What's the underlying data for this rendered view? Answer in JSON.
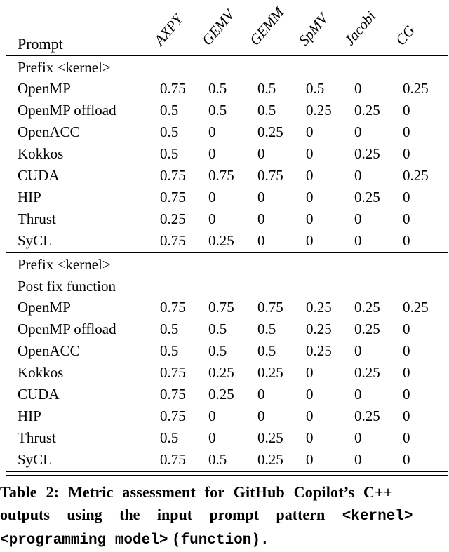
{
  "table": {
    "prompt_header": "Prompt",
    "columns": [
      "AXPY",
      "GEMV",
      "GEMM",
      "SpMV",
      "Jacobi",
      "CG"
    ],
    "sections": [
      {
        "header_lines": [
          "Prefix <kernel>"
        ],
        "rows": [
          {
            "label": "OpenMP",
            "values": [
              "0.75",
              "0.5",
              "0.5",
              "0.5",
              "0",
              "0.25"
            ]
          },
          {
            "label": "OpenMP offload",
            "values": [
              "0.5",
              "0.5",
              "0.5",
              "0.25",
              "0.25",
              "0"
            ]
          },
          {
            "label": "OpenACC",
            "values": [
              "0.5",
              "0",
              "0.25",
              "0",
              "0",
              "0"
            ]
          },
          {
            "label": "Kokkos",
            "values": [
              "0.5",
              "0",
              "0",
              "0",
              "0.25",
              "0"
            ]
          },
          {
            "label": "CUDA",
            "values": [
              "0.75",
              "0.75",
              "0.75",
              "0",
              "0",
              "0.25"
            ]
          },
          {
            "label": "HIP",
            "values": [
              "0.75",
              "0",
              "0",
              "0",
              "0.25",
              "0"
            ]
          },
          {
            "label": "Thrust",
            "values": [
              "0.25",
              "0",
              "0",
              "0",
              "0",
              "0"
            ]
          },
          {
            "label": "SyCL",
            "values": [
              "0.75",
              "0.25",
              "0",
              "0",
              "0",
              "0"
            ]
          }
        ]
      },
      {
        "header_lines": [
          "Prefix <kernel>",
          "Post fix function"
        ],
        "rows": [
          {
            "label": "OpenMP",
            "values": [
              "0.75",
              "0.75",
              "0.75",
              "0.25",
              "0.25",
              "0.25"
            ]
          },
          {
            "label": "OpenMP offload",
            "values": [
              "0.5",
              "0.5",
              "0.5",
              "0.25",
              "0.25",
              "0"
            ]
          },
          {
            "label": "OpenACC",
            "values": [
              "0.5",
              "0.5",
              "0.5",
              "0.25",
              "0",
              "0"
            ]
          },
          {
            "label": "Kokkos",
            "values": [
              "0.75",
              "0.25",
              "0.25",
              "0",
              "0.25",
              "0"
            ]
          },
          {
            "label": "CUDA",
            "values": [
              "0.75",
              "0.25",
              "0",
              "0",
              "0",
              "0"
            ]
          },
          {
            "label": "HIP",
            "values": [
              "0.75",
              "0",
              "0",
              "0",
              "0.25",
              "0"
            ]
          },
          {
            "label": "Thrust",
            "values": [
              "0.5",
              "0",
              "0.25",
              "0",
              "0",
              "0"
            ]
          },
          {
            "label": "SyCL",
            "values": [
              "0.75",
              "0.5",
              "0.25",
              "0",
              "0",
              "0"
            ]
          }
        ]
      }
    ]
  },
  "caption": {
    "lines": [
      [
        {
          "text": "Table 2: Metric assessment for GitHub Copilot’s C++",
          "mono": false
        }
      ],
      [
        {
          "text": "outputs using the input prompt pattern",
          "mono": false
        },
        {
          "text": "<kernel>",
          "mono": true
        }
      ],
      [
        {
          "text": "<programming model>",
          "mono": true
        },
        {
          "text": "(function).",
          "mono": true
        }
      ]
    ]
  }
}
